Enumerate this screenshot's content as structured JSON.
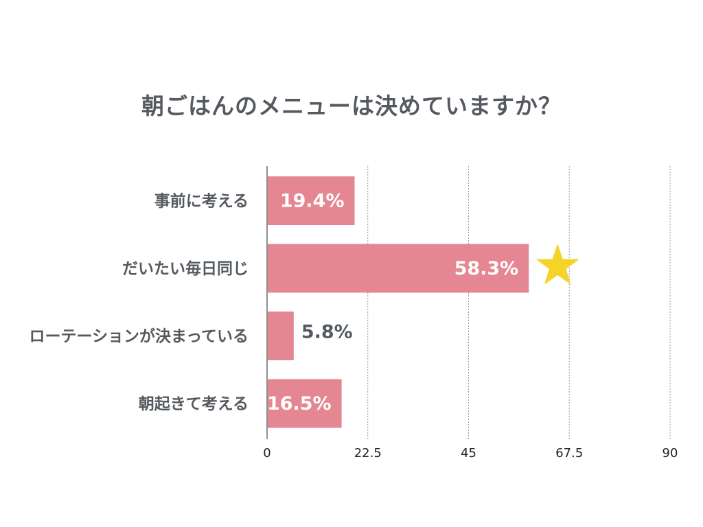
{
  "chart_data": {
    "type": "bar",
    "orientation": "horizontal",
    "title": "朝ごはんのメニューは決めていますか？",
    "categories": [
      "事前に考える",
      "だいたい毎日同じ",
      "ローテーションが決まっている",
      "朝起きて考える"
    ],
    "values": [
      19.4,
      58.3,
      5.8,
      16.5
    ],
    "value_labels": [
      "19.4%",
      "58.3%",
      "5.8%",
      "16.5%"
    ],
    "xlim": [
      0,
      90
    ],
    "xticks": [
      "0",
      "22.5",
      "45",
      "67.5",
      "90"
    ],
    "xtick_values": [
      0,
      22.5,
      45,
      67.5,
      90
    ],
    "grid": "vertical-dotted",
    "highlight": {
      "category_index": 1,
      "marker": "star-icon",
      "color": "#f5d328"
    },
    "colors": {
      "bar": "#e48793",
      "label_inside": "#ffffff",
      "label_outside": "#555a60",
      "text": "#555a60",
      "axis": "#222222",
      "grid": "#999999"
    }
  }
}
